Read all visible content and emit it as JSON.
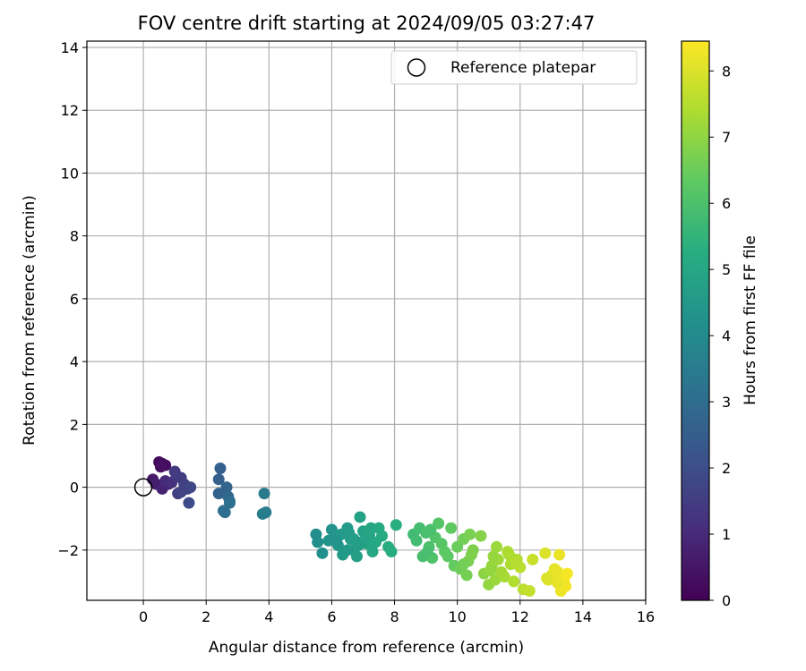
{
  "chart_data": {
    "type": "scatter",
    "title": "FOV centre drift starting at 2024/09/05 03:27:47",
    "xlabel": "Angular distance from reference (arcmin)",
    "ylabel": "Rotation from reference (arcmin)",
    "xlim": [
      -1.8,
      16
    ],
    "ylim": [
      -3.6,
      14.2
    ],
    "xticks": [
      0,
      2,
      4,
      6,
      8,
      10,
      12,
      14,
      16
    ],
    "yticks": [
      -2,
      0,
      2,
      4,
      6,
      8,
      10,
      12,
      14
    ],
    "grid": true,
    "legend": {
      "placement": "top-right",
      "entries": [
        "Reference platepar"
      ]
    },
    "reference_point": {
      "name": "Reference platepar",
      "x": 0,
      "y": 0
    },
    "colorbar": {
      "label": "Hours from first FF file",
      "colormap": "viridis",
      "range": [
        0,
        8.45
      ],
      "ticks": [
        0,
        1,
        2,
        3,
        4,
        5,
        6,
        7,
        8
      ]
    },
    "series": [
      {
        "name": "",
        "color_by": "hours",
        "x": [
          0.5,
          0.6,
          0.7,
          0.55,
          0.3,
          0.4,
          0.6,
          0.8,
          0.7,
          0.9,
          1.0,
          1.2,
          1.1,
          1.3,
          1.4,
          1.5,
          1.05,
          1.2,
          1.45,
          2.45,
          2.4,
          2.65,
          2.7,
          2.75,
          2.4,
          2.55,
          2.6,
          2.75,
          3.85,
          3.9,
          3.8,
          5.5,
          5.55,
          5.7,
          5.9,
          6.0,
          6.1,
          6.2,
          6.3,
          6.35,
          6.5,
          6.6,
          6.7,
          6.8,
          6.9,
          7.0,
          7.1,
          7.2,
          7.3,
          7.4,
          7.5,
          7.6,
          7.8,
          7.9,
          8.05,
          6.95,
          6.55,
          6.7,
          6.5,
          6.85,
          6.15,
          7.25,
          8.6,
          8.7,
          8.8,
          8.9,
          9.0,
          9.1,
          9.2,
          9.3,
          9.4,
          9.5,
          9.6,
          9.7,
          9.8,
          9.9,
          10.0,
          10.1,
          10.2,
          10.3,
          10.4,
          10.5,
          9.15,
          9.05,
          10.75,
          10.35,
          10.2,
          10.45,
          10.85,
          11.0,
          11.1,
          11.2,
          11.3,
          11.4,
          11.5,
          11.6,
          11.7,
          11.8,
          11.9,
          12.0,
          11.25,
          11.05,
          11.15,
          11.65,
          11.85,
          12.1,
          12.3,
          12.4,
          12.8,
          12.9,
          13.0,
          13.1,
          13.2,
          13.3,
          13.4,
          13.5,
          13.45,
          13.25,
          13.2,
          12.85
        ],
        "y": [
          0.8,
          0.75,
          0.7,
          0.65,
          0.25,
          0.1,
          -0.05,
          0.1,
          0.2,
          0.15,
          0.5,
          0.3,
          -0.2,
          0.1,
          -0.05,
          0.0,
          0.35,
          -0.15,
          -0.5,
          0.6,
          0.25,
          0.0,
          -0.3,
          -0.45,
          -0.2,
          -0.75,
          -0.8,
          -0.5,
          -0.2,
          -0.8,
          -0.85,
          -1.5,
          -1.75,
          -2.1,
          -1.7,
          -1.35,
          -1.6,
          -1.85,
          -1.5,
          -2.15,
          -1.3,
          -1.65,
          -2.0,
          -2.2,
          -0.95,
          -1.4,
          -1.8,
          -1.5,
          -2.05,
          -1.75,
          -1.3,
          -1.55,
          -1.9,
          -2.05,
          -1.2,
          -1.75,
          -1.45,
          -1.65,
          -2.0,
          -1.85,
          -1.7,
          -1.3,
          -1.5,
          -1.7,
          -1.3,
          -2.2,
          -1.45,
          -1.9,
          -2.25,
          -1.6,
          -1.15,
          -1.8,
          -2.05,
          -2.2,
          -1.3,
          -2.5,
          -1.9,
          -2.6,
          -1.65,
          -2.8,
          -1.5,
          -2.0,
          -1.35,
          -2.05,
          -1.55,
          -2.35,
          -2.45,
          -2.15,
          -2.75,
          -3.1,
          -2.5,
          -2.95,
          -2.3,
          -2.7,
          -2.85,
          -2.05,
          -2.45,
          -3.0,
          -2.3,
          -2.55,
          -1.9,
          -2.65,
          -2.2,
          -2.15,
          -2.4,
          -3.25,
          -3.3,
          -2.3,
          -2.1,
          -2.95,
          -2.8,
          -2.6,
          -2.7,
          -3.3,
          -2.95,
          -2.75,
          -3.15,
          -2.15,
          -3.05,
          -2.9
        ],
        "hours": [
          0.2,
          0.25,
          0.3,
          0.35,
          0.6,
          0.7,
          0.8,
          0.9,
          1.0,
          1.1,
          1.4,
          1.5,
          1.55,
          1.6,
          1.7,
          1.8,
          1.45,
          1.65,
          1.9,
          2.55,
          2.6,
          2.7,
          2.8,
          2.85,
          2.65,
          3.0,
          3.05,
          3.1,
          3.45,
          3.5,
          3.55,
          4.1,
          4.15,
          4.2,
          4.3,
          4.35,
          4.4,
          4.45,
          4.5,
          4.55,
          4.6,
          4.65,
          4.7,
          4.75,
          4.8,
          4.85,
          4.9,
          4.95,
          5.0,
          5.05,
          5.1,
          5.15,
          5.2,
          5.25,
          5.3,
          4.8,
          4.6,
          4.7,
          4.55,
          4.75,
          4.35,
          5.0,
          5.75,
          5.8,
          5.85,
          5.9,
          5.95,
          6.0,
          6.05,
          6.1,
          6.15,
          6.2,
          6.25,
          6.3,
          6.35,
          6.4,
          6.5,
          6.55,
          6.6,
          6.65,
          6.7,
          6.75,
          5.95,
          5.9,
          6.85,
          6.7,
          6.6,
          6.75,
          6.95,
          7.05,
          7.1,
          7.15,
          7.2,
          7.25,
          7.3,
          7.35,
          7.4,
          7.45,
          7.5,
          7.55,
          7.15,
          7.05,
          7.1,
          7.4,
          7.5,
          7.6,
          7.7,
          7.75,
          8.0,
          8.05,
          8.1,
          8.15,
          8.2,
          8.25,
          8.3,
          8.35,
          8.3,
          8.2,
          8.15,
          8.0
        ]
      }
    ]
  }
}
